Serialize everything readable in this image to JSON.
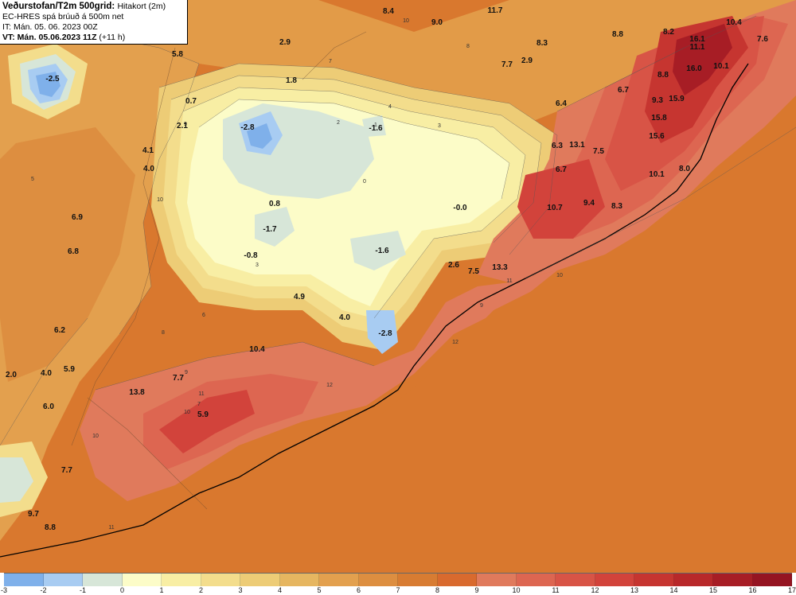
{
  "header": {
    "title_bold": "Veðurstofan/T2m 500grid:",
    "title_rest": "Hitakort (2m)",
    "line2": "EC-HRES spá brúuð á 500m net",
    "line3": "IT: Mán. 05. 06. 2023 00Z",
    "vt_bold": "VT: Mán. 05.06.2023 11Z",
    "vt_rest": "(+11 h)"
  },
  "legend": {
    "ticks": [
      "-3",
      "-2",
      "-1",
      "0",
      "1",
      "2",
      "3",
      "4",
      "5",
      "6",
      "7",
      "8",
      "9",
      "10",
      "11",
      "12",
      "13",
      "14",
      "15",
      "16",
      "17"
    ],
    "colors": [
      "#7fb0ea",
      "#a8ccf2",
      "#d7e6d8",
      "#fcfcc8",
      "#f8eea4",
      "#f3dd8c",
      "#edcc76",
      "#e6b660",
      "#e3a04e",
      "#dd8e40",
      "#d87c32",
      "#d96a2e",
      "#e07a5c",
      "#dd6651",
      "#d85446",
      "#d2433b",
      "#c63530",
      "#b8282a",
      "#a71d25",
      "#951422"
    ]
  },
  "temps": [
    "-2.5",
    "5.8",
    "2.9",
    "1.8",
    "0.7",
    "2.1",
    "-2.8",
    "4.1",
    "4.0",
    "6.9",
    "6.8",
    "0.8",
    "-1.7",
    "-0.8",
    "6.2",
    "4.9",
    "2.0",
    "4.0",
    "5.9",
    "6.0",
    "7.7",
    "9.7",
    "8.8",
    "13.8",
    "7.7",
    "5.9",
    "10.4",
    "8.4",
    "9.0",
    "11.7",
    "8.3",
    "7.7",
    "2.9",
    "-1.6",
    "6.4",
    "-0.0",
    "-1.6",
    "2.6",
    "7.5",
    "13.3",
    "4.0",
    "-2.8",
    "8.8",
    "10.4",
    "8.2",
    "7.6",
    "16.1",
    "11.1",
    "10.1",
    "16.0",
    "8.8",
    "6.7",
    "9.3",
    "15.9",
    "15.8",
    "15.6",
    "6.3",
    "13.1",
    "7.5",
    "6.7",
    "10.1",
    "8.0",
    "10.7",
    "9.4",
    "8.3"
  ],
  "contour_labels": [
    "10",
    "8",
    "7",
    "9",
    "10",
    "5",
    "4",
    "3",
    "2",
    "1",
    "0",
    "3",
    "6",
    "8",
    "9",
    "11",
    "12",
    "10",
    "11",
    "9",
    "12",
    "7",
    "10",
    "10",
    "11"
  ]
}
